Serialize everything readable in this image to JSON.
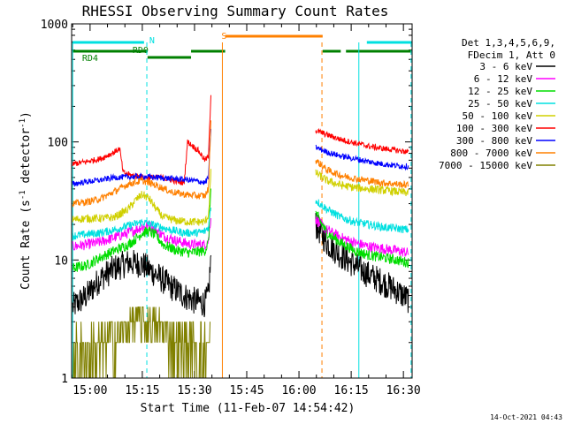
{
  "chart_data": {
    "type": "line",
    "title": "RHESSI Observing Summary Count Rates",
    "xlabel": "Start Time (11-Feb-07 14:54:42)",
    "ylabel_main": "Count Rate (s",
    "ylabel_sup1": "-1",
    "ylabel_mid": " detector",
    "ylabel_sup2": "-1",
    "ylabel_end": ")",
    "yscale": "log",
    "ylim": [
      1,
      1000
    ],
    "xlim_minutes": [
      54.7,
      152.5
    ],
    "x_ticks": [
      {
        "minute": 60,
        "label": "15:00"
      },
      {
        "minute": 75,
        "label": "15:15"
      },
      {
        "minute": 90,
        "label": "15:30"
      },
      {
        "minute": 105,
        "label": "15:45"
      },
      {
        "minute": 120,
        "label": "16:00"
      },
      {
        "minute": 135,
        "label": "16:15"
      },
      {
        "minute": 150,
        "label": "16:30"
      }
    ],
    "y_ticks": [
      {
        "value": 1,
        "label": "1"
      },
      {
        "value": 10,
        "label": "10"
      },
      {
        "value": 100,
        "label": "100"
      },
      {
        "value": 1000,
        "label": "1000"
      }
    ],
    "legend_header": [
      "Det 1,3,4,5,6,9,",
      "FDecim 1, Att 0"
    ],
    "series": [
      {
        "name": "3 - 6 keV",
        "color": "#000000",
        "points": [
          [
            55,
            4
          ],
          [
            59,
            5
          ],
          [
            63,
            7
          ],
          [
            67,
            8.5
          ],
          [
            71,
            9.5
          ],
          [
            75,
            9.2
          ],
          [
            79,
            7.5
          ],
          [
            83,
            6
          ],
          [
            87,
            5
          ],
          [
            90,
            4.5
          ],
          [
            93,
            4.3
          ],
          [
            94,
            5
          ],
          [
            94.8,
            12
          ],
          [
            124.8,
            20
          ],
          [
            128,
            14
          ],
          [
            132,
            11
          ],
          [
            136,
            9
          ],
          [
            140,
            7.5
          ],
          [
            144,
            6.5
          ],
          [
            148,
            5.5
          ],
          [
            151.5,
            4.6
          ]
        ]
      },
      {
        "name": "6 - 12 keV",
        "color": "#ff00ff",
        "points": [
          [
            55,
            13
          ],
          [
            59,
            13.5
          ],
          [
            63,
            14.2
          ],
          [
            67,
            15.5
          ],
          [
            71,
            17
          ],
          [
            73,
            18
          ],
          [
            75,
            19
          ],
          [
            77,
            19.5
          ],
          [
            79,
            18
          ],
          [
            81,
            16
          ],
          [
            85,
            14.5
          ],
          [
            89,
            13.5
          ],
          [
            93,
            13.5
          ],
          [
            94,
            14.5
          ],
          [
            94.8,
            25
          ],
          [
            124.8,
            22
          ],
          [
            128,
            18
          ],
          [
            132,
            15.5
          ],
          [
            136,
            14
          ],
          [
            140,
            13
          ],
          [
            144,
            12.5
          ],
          [
            148,
            12
          ],
          [
            151.5,
            11.5
          ]
        ]
      },
      {
        "name": "12 - 25 keV",
        "color": "#00dd00",
        "points": [
          [
            55,
            8.5
          ],
          [
            59,
            9
          ],
          [
            63,
            10.5
          ],
          [
            67,
            12
          ],
          [
            71,
            13.5
          ],
          [
            73,
            15
          ],
          [
            75,
            17
          ],
          [
            77,
            17.5
          ],
          [
            79,
            16
          ],
          [
            81,
            13.5
          ],
          [
            85,
            12
          ],
          [
            89,
            11.5
          ],
          [
            93,
            12
          ],
          [
            94,
            14
          ],
          [
            94.8,
            50
          ],
          [
            124.8,
            25
          ],
          [
            128,
            17
          ],
          [
            132,
            14
          ],
          [
            136,
            12
          ],
          [
            140,
            11
          ],
          [
            144,
            10.5
          ],
          [
            148,
            10
          ],
          [
            151.5,
            9.5
          ]
        ]
      },
      {
        "name": "25 - 50 keV",
        "color": "#00e0e0",
        "points": [
          [
            55,
            16
          ],
          [
            59,
            16.5
          ],
          [
            63,
            17
          ],
          [
            67,
            18
          ],
          [
            71,
            19.5
          ],
          [
            75,
            21
          ],
          [
            79,
            19.5
          ],
          [
            83,
            18
          ],
          [
            87,
            17
          ],
          [
            91,
            17
          ],
          [
            93,
            17.5
          ],
          [
            94,
            19
          ],
          [
            94.8,
            30
          ],
          [
            124.8,
            32
          ],
          [
            128,
            27
          ],
          [
            132,
            23
          ],
          [
            136,
            21
          ],
          [
            140,
            20
          ],
          [
            144,
            19
          ],
          [
            148,
            18.5
          ],
          [
            151.5,
            18
          ]
        ]
      },
      {
        "name": "50 - 100 keV",
        "color": "#d0d000",
        "points": [
          [
            55,
            22
          ],
          [
            59,
            22.5
          ],
          [
            63,
            22.5
          ],
          [
            67,
            23
          ],
          [
            71,
            27
          ],
          [
            73,
            32
          ],
          [
            75,
            36
          ],
          [
            77,
            33
          ],
          [
            79,
            27
          ],
          [
            81,
            23
          ],
          [
            85,
            21.5
          ],
          [
            89,
            21
          ],
          [
            93,
            21
          ],
          [
            94,
            24
          ],
          [
            94.8,
            60
          ],
          [
            124.8,
            55
          ],
          [
            128,
            47
          ],
          [
            132,
            43
          ],
          [
            136,
            41
          ],
          [
            140,
            40
          ],
          [
            144,
            39
          ],
          [
            148,
            38
          ],
          [
            151.5,
            37
          ]
        ]
      },
      {
        "name": "100 - 300 keV",
        "color": "#ff0000",
        "points": [
          [
            55,
            65
          ],
          [
            59,
            68
          ],
          [
            63,
            72
          ],
          [
            67,
            82
          ],
          [
            68.5,
            88
          ],
          [
            69.5,
            55
          ],
          [
            72,
            52
          ],
          [
            76,
            50
          ],
          [
            80,
            50
          ],
          [
            83,
            48
          ],
          [
            85,
            46
          ],
          [
            87,
            45
          ],
          [
            88,
            100
          ],
          [
            91,
            85
          ],
          [
            93,
            70
          ],
          [
            94,
            75
          ],
          [
            94.8,
            300
          ],
          [
            124.8,
            125
          ],
          [
            128,
            115
          ],
          [
            132,
            105
          ],
          [
            136,
            98
          ],
          [
            140,
            92
          ],
          [
            144,
            88
          ],
          [
            148,
            85
          ],
          [
            151.5,
            82
          ]
        ]
      },
      {
        "name": "300 - 800 keV",
        "color": "#0000ff",
        "points": [
          [
            55,
            44
          ],
          [
            59,
            46
          ],
          [
            63,
            47.5
          ],
          [
            67,
            50
          ],
          [
            71,
            50.5
          ],
          [
            75,
            51
          ],
          [
            79,
            50
          ],
          [
            83,
            49
          ],
          [
            87,
            48
          ],
          [
            91,
            46.5
          ],
          [
            93,
            45
          ],
          [
            94,
            50
          ],
          [
            94.8,
            150
          ],
          [
            124.8,
            90
          ],
          [
            128,
            82
          ],
          [
            132,
            76
          ],
          [
            136,
            72
          ],
          [
            140,
            68
          ],
          [
            144,
            65
          ],
          [
            148,
            63
          ],
          [
            151.5,
            62
          ]
        ]
      },
      {
        "name": "800 - 7000 keV",
        "color": "#ff8000",
        "points": [
          [
            55,
            30
          ],
          [
            59,
            31
          ],
          [
            63,
            33
          ],
          [
            67,
            38
          ],
          [
            71,
            44
          ],
          [
            75,
            47
          ],
          [
            79,
            43
          ],
          [
            83,
            38
          ],
          [
            87,
            36
          ],
          [
            91,
            35
          ],
          [
            93,
            35
          ],
          [
            94,
            40
          ],
          [
            94.8,
            180
          ],
          [
            124.8,
            70
          ],
          [
            128,
            58
          ],
          [
            132,
            52
          ],
          [
            136,
            49
          ],
          [
            140,
            47
          ],
          [
            144,
            45
          ],
          [
            148,
            44
          ],
          [
            151.5,
            43
          ]
        ]
      },
      {
        "name": "7000 - 15000 keV",
        "color": "#808000",
        "points": [
          [
            55,
            1.6
          ],
          [
            58,
            1.7
          ],
          [
            62,
            1.8
          ],
          [
            66,
            2.2
          ],
          [
            70,
            2.6
          ],
          [
            74,
            3.1
          ],
          [
            78,
            3
          ],
          [
            82,
            2.5
          ],
          [
            86,
            2
          ],
          [
            90,
            1.8
          ],
          [
            93,
            1.7
          ],
          [
            94.5,
            2
          ]
        ]
      }
    ],
    "annotations": [
      {
        "text": "N",
        "minute": 76,
        "color": "#00e0e0"
      },
      {
        "text": "RD0",
        "minute": 76,
        "color": "#008000"
      },
      {
        "text": "RD4",
        "minute": 60,
        "color": "#008000"
      },
      {
        "text": "S",
        "minute": 98.5,
        "color": "#ff8000"
      }
    ],
    "timelines": {
      "night_cyan": [
        [
          55,
          75.5
        ],
        [
          139.5,
          152.3
        ]
      ],
      "saa_orange": [
        [
          98.8,
          126.8
        ]
      ],
      "rd_green": [
        [
          55,
          76.5
        ],
        [
          76.5,
          89
        ],
        [
          89,
          98.8
        ],
        [
          126.8,
          132
        ],
        [
          133.5,
          152.3
        ]
      ]
    },
    "vertical_markers": [
      {
        "minute": 55.0,
        "color": "#00e0e0",
        "dashed": false
      },
      {
        "minute": 76.3,
        "color": "#00e0e0",
        "dashed": true
      },
      {
        "minute": 98.0,
        "color": "#ff8000",
        "dashed": false
      },
      {
        "minute": 126.6,
        "color": "#ff8000",
        "dashed": true
      },
      {
        "minute": 137.2,
        "color": "#00e0e0",
        "dashed": false
      },
      {
        "minute": 152.2,
        "color": "#00e0e0",
        "dashed": true
      }
    ],
    "grid": false,
    "legend_position": "right"
  },
  "footer_timestamp": "14-Oct-2021 04:43"
}
